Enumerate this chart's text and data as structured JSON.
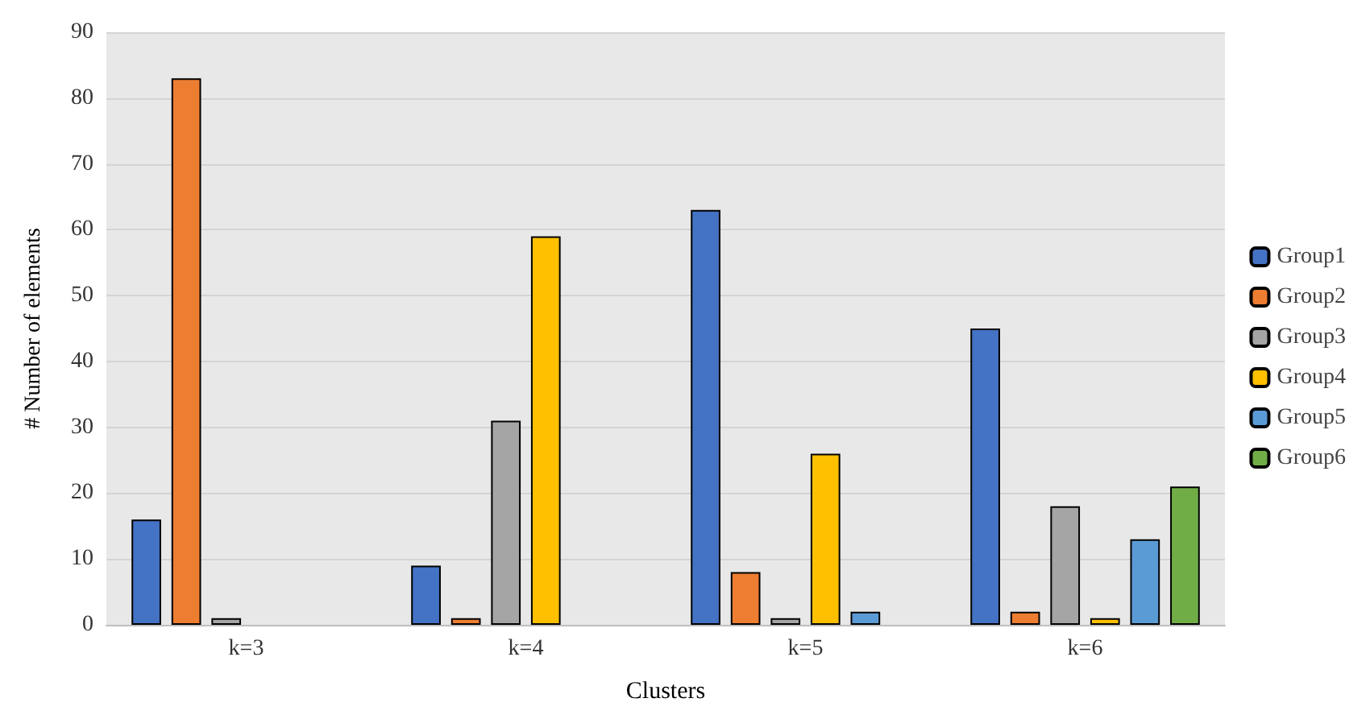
{
  "chart_data": {
    "type": "bar",
    "xlabel": "Clusters",
    "ylabel": "# Number of elements",
    "categories": [
      "k=3",
      "k=4",
      "k=5",
      "k=6"
    ],
    "series": [
      {
        "name": "Group1",
        "color": "#4472c4",
        "values": [
          16,
          9,
          63,
          45
        ]
      },
      {
        "name": "Group2",
        "color": "#ed7d31",
        "values": [
          83,
          1,
          8,
          2
        ]
      },
      {
        "name": "Group3",
        "color": "#a5a5a5",
        "values": [
          1,
          31,
          1,
          18
        ]
      },
      {
        "name": "Group4",
        "color": "#ffc000",
        "values": [
          null,
          59,
          26,
          1
        ]
      },
      {
        "name": "Group5",
        "color": "#5b9bd5",
        "values": [
          null,
          null,
          2,
          13
        ]
      },
      {
        "name": "Group6",
        "color": "#70ad47",
        "values": [
          null,
          null,
          null,
          21
        ]
      }
    ],
    "ylim": [
      0,
      90
    ],
    "yticks": [
      0,
      10,
      20,
      30,
      40,
      50,
      60,
      70,
      80,
      90
    ],
    "grid": "y",
    "legend": "right"
  }
}
